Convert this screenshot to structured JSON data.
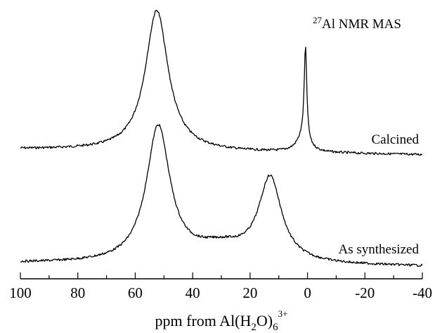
{
  "chart_data": {
    "type": "line",
    "title": {
      "sup": "27",
      "main": "Al NMR MAS"
    },
    "xlabel": {
      "main": "ppm from Al(H",
      "sub1": "2",
      "mid": "O)",
      "sub2": "6",
      "sup": "3+"
    },
    "xlim": [
      100,
      -40
    ],
    "x_reversed": true,
    "y_axis_shown": false,
    "grid": false,
    "x_ticks": [
      100,
      80,
      60,
      40,
      20,
      0,
      -20,
      -40
    ],
    "x_tick_labels": [
      "100",
      "80",
      "60",
      "40",
      "20",
      "0",
      "-20",
      "-40"
    ],
    "x_minor_step": 10,
    "series": [
      {
        "name": "Calcined",
        "baseline": 0.0,
        "peaks": [
          {
            "position_ppm": 52.5,
            "width_ppm": 4.8,
            "height": 1.0
          },
          {
            "position_ppm": 0.7,
            "width_ppm": 0.55,
            "height": 0.66
          },
          {
            "position_ppm": 1.6,
            "width_ppm": 2.6,
            "height": 0.1
          }
        ]
      },
      {
        "name": "As synthesized",
        "baseline": 0.0,
        "peaks": [
          {
            "position_ppm": 52.0,
            "width_ppm": 5.0,
            "height": 0.96
          },
          {
            "position_ppm": 13.0,
            "width_ppm": 4.8,
            "height": 0.59
          },
          {
            "position_ppm": 30.0,
            "width_ppm": 12.0,
            "height": 0.11
          }
        ]
      }
    ]
  }
}
